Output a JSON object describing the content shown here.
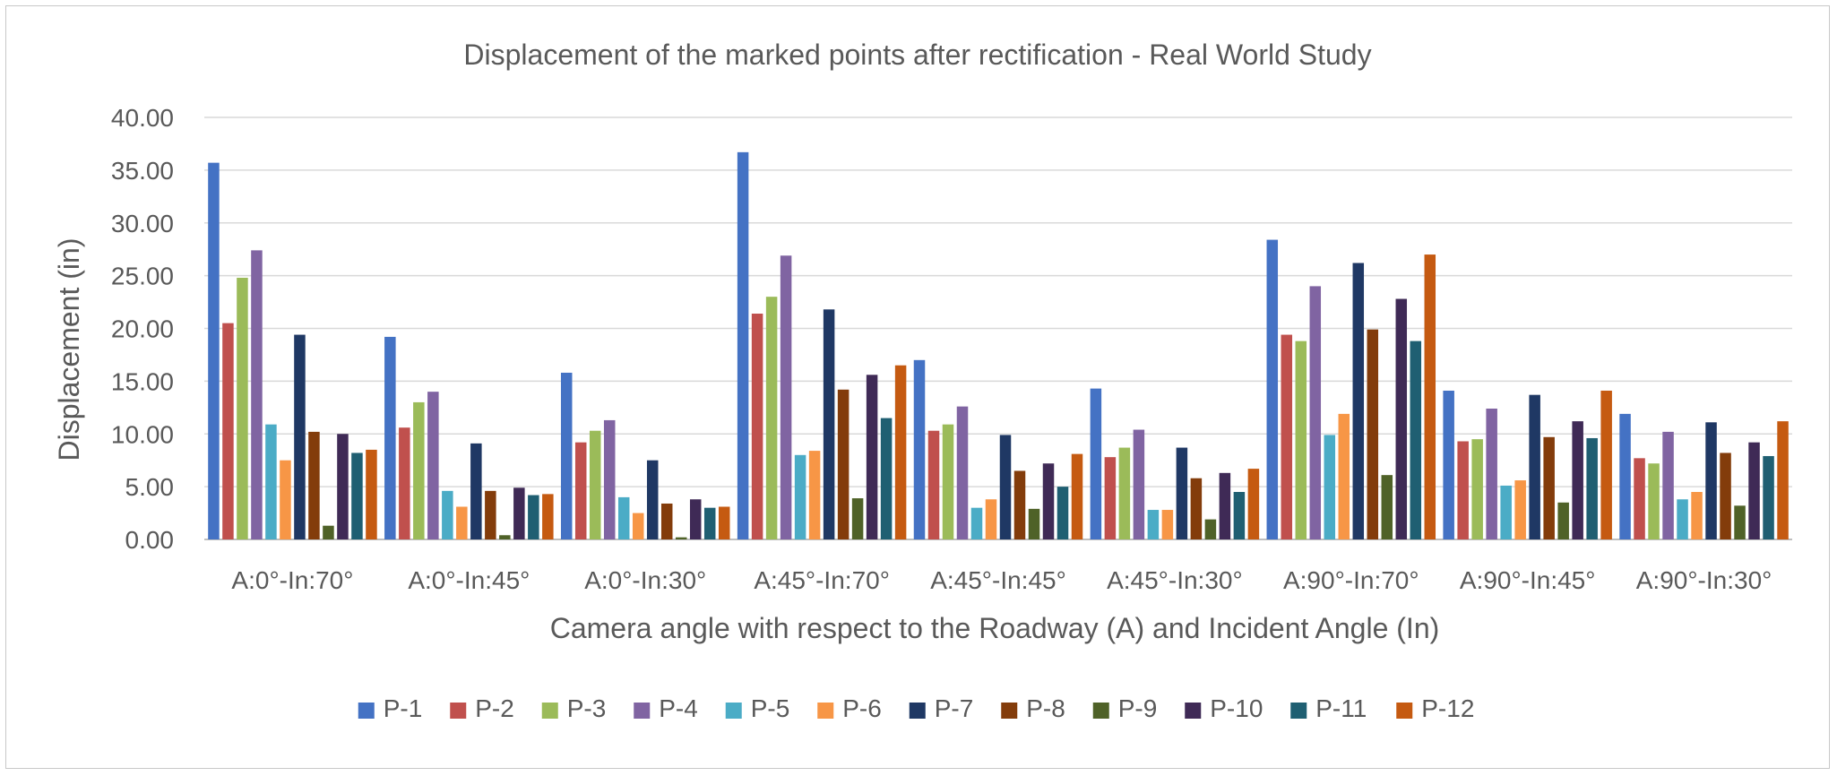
{
  "chart_data": {
    "type": "bar",
    "title": "Displacement of the marked points after rectification - Real World Study",
    "xlabel": "Camera angle with respect to the Roadway (A) and Incident Angle (In)",
    "ylabel": "Displacement (in)",
    "ylim": [
      0,
      40
    ],
    "yticks": [
      "0.00",
      "5.00",
      "10.00",
      "15.00",
      "20.00",
      "25.00",
      "30.00",
      "35.00",
      "40.00"
    ],
    "grid": true,
    "legend_position": "bottom",
    "categories": [
      "A:0°-In:70°",
      "A:0°-In:45°",
      "A:0°-In:30°",
      "A:45°-In:70°",
      "A:45°-In:45°",
      "A:45°-In:30°",
      "A:90°-In:70°",
      "A:90°-In:45°",
      "A:90°-In:30°"
    ],
    "series": [
      {
        "name": "P-1",
        "color": "#4472C4",
        "values": [
          35.7,
          19.2,
          15.8,
          36.7,
          17.0,
          14.3,
          28.4,
          14.1,
          11.9
        ]
      },
      {
        "name": "P-2",
        "color": "#C0504D",
        "values": [
          20.5,
          10.6,
          9.2,
          21.4,
          10.3,
          7.8,
          19.4,
          9.3,
          7.7
        ]
      },
      {
        "name": "P-3",
        "color": "#9BBB59",
        "values": [
          24.8,
          13.0,
          10.3,
          23.0,
          10.9,
          8.7,
          18.8,
          9.5,
          7.2
        ]
      },
      {
        "name": "P-4",
        "color": "#8064A2",
        "values": [
          27.4,
          14.0,
          11.3,
          26.9,
          12.6,
          10.4,
          24.0,
          12.4,
          10.2
        ]
      },
      {
        "name": "P-5",
        "color": "#4BACC6",
        "values": [
          10.9,
          4.6,
          4.0,
          8.0,
          3.0,
          2.8,
          9.9,
          5.1,
          3.8
        ]
      },
      {
        "name": "P-6",
        "color": "#F79646",
        "values": [
          7.5,
          3.1,
          2.5,
          8.4,
          3.8,
          2.8,
          11.9,
          5.6,
          4.5
        ]
      },
      {
        "name": "P-7",
        "color": "#1F3864",
        "values": [
          19.4,
          9.1,
          7.5,
          21.8,
          9.9,
          8.7,
          26.2,
          13.7,
          11.1
        ]
      },
      {
        "name": "P-8",
        "color": "#833C0B",
        "values": [
          10.2,
          4.6,
          3.4,
          14.2,
          6.5,
          5.8,
          19.9,
          9.7,
          8.2
        ]
      },
      {
        "name": "P-9",
        "color": "#4F6228",
        "values": [
          1.3,
          0.4,
          0.2,
          3.9,
          2.9,
          1.9,
          6.1,
          3.5,
          3.2
        ]
      },
      {
        "name": "P-10",
        "color": "#3F2A56",
        "values": [
          10.0,
          4.9,
          3.8,
          15.6,
          7.2,
          6.3,
          22.8,
          11.2,
          9.2
        ]
      },
      {
        "name": "P-11",
        "color": "#1F5F72",
        "values": [
          8.2,
          4.2,
          3.0,
          11.5,
          5.0,
          4.5,
          18.8,
          9.6,
          7.9
        ]
      },
      {
        "name": "P-12",
        "color": "#C55A11",
        "values": [
          8.5,
          4.3,
          3.1,
          16.5,
          8.1,
          6.7,
          27.0,
          14.1,
          11.2
        ]
      }
    ]
  }
}
